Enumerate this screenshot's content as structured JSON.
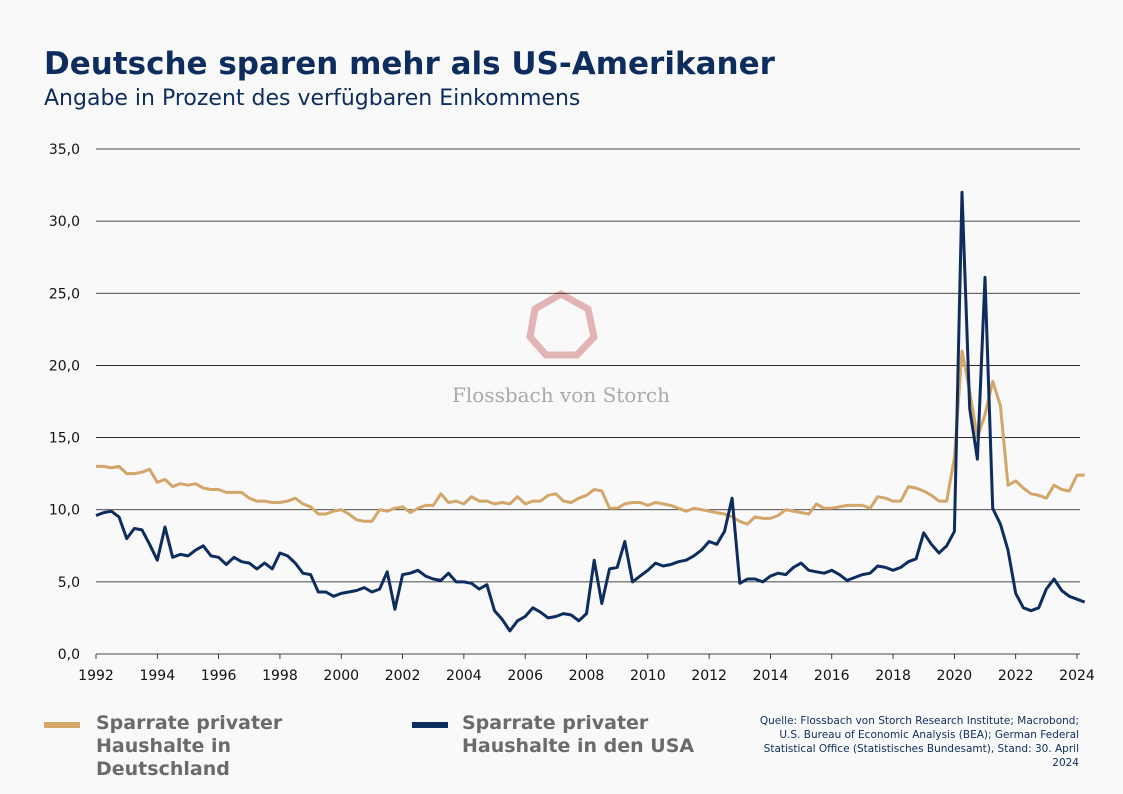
{
  "chart_data": {
    "type": "line",
    "title": "Deutsche sparen mehr als US-Amerikaner",
    "subtitle": "Angabe in Prozent des verfügbaren Einkommens",
    "watermark": "Flossbach von Storch",
    "source": "Quelle: Flossbach von Storch Research Institute; Macrobond; U.S. Bureau of Economic Analysis (BEA); German Federal Statistical Office (Statistisches Bundesamt), Stand: 30. April 2024",
    "x": [
      1992,
      1992.25,
      1992.5,
      1992.75,
      1993,
      1993.25,
      1993.5,
      1993.75,
      1994,
      1994.25,
      1994.5,
      1994.75,
      1995,
      1995.25,
      1995.5,
      1995.75,
      1996,
      1996.25,
      1996.5,
      1996.75,
      1997,
      1997.25,
      1997.5,
      1997.75,
      1998,
      1998.25,
      1998.5,
      1998.75,
      1999,
      1999.25,
      1999.5,
      1999.75,
      2000,
      2000.25,
      2000.5,
      2000.75,
      2001,
      2001.25,
      2001.5,
      2001.75,
      2002,
      2002.25,
      2002.5,
      2002.75,
      2003,
      2003.25,
      2003.5,
      2003.75,
      2004,
      2004.25,
      2004.5,
      2004.75,
      2005,
      2005.25,
      2005.5,
      2005.75,
      2006,
      2006.25,
      2006.5,
      2006.75,
      2007,
      2007.25,
      2007.5,
      2007.75,
      2008,
      2008.25,
      2008.5,
      2008.75,
      2009,
      2009.25,
      2009.5,
      2009.75,
      2010,
      2010.25,
      2010.5,
      2010.75,
      2011,
      2011.25,
      2011.5,
      2011.75,
      2012,
      2012.25,
      2012.5,
      2012.75,
      2013,
      2013.25,
      2013.5,
      2013.75,
      2014,
      2014.25,
      2014.5,
      2014.75,
      2015,
      2015.25,
      2015.5,
      2015.75,
      2016,
      2016.25,
      2016.5,
      2016.75,
      2017,
      2017.25,
      2017.5,
      2017.75,
      2018,
      2018.25,
      2018.5,
      2018.75,
      2019,
      2019.25,
      2019.5,
      2019.75,
      2020,
      2020.25,
      2020.5,
      2020.75,
      2021,
      2021.25,
      2021.5,
      2021.75,
      2022,
      2022.25,
      2022.5,
      2022.75,
      2023,
      2023.25,
      2023.5,
      2023.75,
      2024,
      2024.25
    ],
    "series": [
      {
        "name": "Sparrate privater Haushalte in Deutschland",
        "color": "#d3a66a",
        "values": [
          13.0,
          13.0,
          12.9,
          13.0,
          12.5,
          12.5,
          12.6,
          12.8,
          11.9,
          12.1,
          11.6,
          11.8,
          11.7,
          11.8,
          11.5,
          11.4,
          11.4,
          11.2,
          11.2,
          11.2,
          10.8,
          10.6,
          10.6,
          10.5,
          10.5,
          10.6,
          10.8,
          10.4,
          10.2,
          9.7,
          9.7,
          9.9,
          10.0,
          9.7,
          9.3,
          9.2,
          9.2,
          10.0,
          9.9,
          10.1,
          10.2,
          9.8,
          10.1,
          10.3,
          10.3,
          11.1,
          10.5,
          10.6,
          10.4,
          10.9,
          10.6,
          10.6,
          10.4,
          10.5,
          10.4,
          10.9,
          10.4,
          10.6,
          10.6,
          11.0,
          11.1,
          10.6,
          10.5,
          10.8,
          11.0,
          11.4,
          11.3,
          10.1,
          10.1,
          10.4,
          10.5,
          10.5,
          10.3,
          10.5,
          10.4,
          10.3,
          10.1,
          9.9,
          10.1,
          10.0,
          9.9,
          9.8,
          9.7,
          9.5,
          9.2,
          9.0,
          9.5,
          9.4,
          9.4,
          9.6,
          10.0,
          9.9,
          9.8,
          9.7,
          10.4,
          10.1,
          10.1,
          10.2,
          10.3,
          10.3,
          10.3,
          10.1,
          10.9,
          10.8,
          10.6,
          10.6,
          11.6,
          11.5,
          11.3,
          11.0,
          10.6,
          10.6,
          13.6,
          21.0,
          18.2,
          15.0,
          16.6,
          18.9,
          17.2,
          11.7,
          12.0,
          11.5,
          11.1,
          11.0,
          10.8,
          11.7,
          11.4,
          11.3,
          12.4,
          12.4
        ]
      },
      {
        "name": "Sparrate privater Haushalte in den USA",
        "color": "#0d2d5e",
        "values": [
          9.6,
          9.8,
          9.9,
          9.5,
          8.0,
          8.7,
          8.6,
          7.6,
          6.5,
          8.8,
          6.7,
          6.9,
          6.8,
          7.2,
          7.5,
          6.8,
          6.7,
          6.2,
          6.7,
          6.4,
          6.3,
          5.9,
          6.3,
          5.9,
          7.0,
          6.8,
          6.3,
          5.6,
          5.5,
          4.3,
          4.3,
          4.0,
          4.2,
          4.3,
          4.4,
          4.6,
          4.3,
          4.5,
          5.7,
          3.1,
          5.5,
          5.6,
          5.8,
          5.4,
          5.2,
          5.1,
          5.6,
          5.0,
          5.0,
          4.9,
          4.5,
          4.8,
          3.0,
          2.4,
          1.6,
          2.3,
          2.6,
          3.2,
          2.9,
          2.5,
          2.6,
          2.8,
          2.7,
          2.3,
          2.8,
          6.5,
          3.5,
          5.9,
          6.0,
          7.8,
          5.0,
          5.4,
          5.8,
          6.3,
          6.1,
          6.2,
          6.4,
          6.5,
          6.8,
          7.2,
          7.8,
          7.6,
          8.5,
          10.8,
          4.9,
          5.2,
          5.2,
          5.0,
          5.4,
          5.6,
          5.5,
          6.0,
          6.3,
          5.8,
          5.7,
          5.6,
          5.8,
          5.5,
          5.1,
          5.3,
          5.5,
          5.6,
          6.1,
          6.0,
          5.8,
          6.0,
          6.4,
          6.6,
          8.4,
          7.6,
          7.0,
          7.5,
          8.5,
          32.0,
          17.0,
          13.5,
          26.1,
          10.1,
          9.0,
          7.2,
          4.2,
          3.2,
          3.0,
          3.2,
          4.5,
          5.2,
          4.4,
          4.0,
          3.8,
          3.6
        ]
      }
    ],
    "xlim": [
      1992,
      2024.4
    ],
    "xticks": [
      1992,
      1994,
      1996,
      1998,
      2000,
      2002,
      2004,
      2006,
      2008,
      2010,
      2012,
      2014,
      2016,
      2018,
      2020,
      2022,
      2024
    ],
    "ylim": [
      0,
      35
    ],
    "yticks": [
      {
        "value": 0,
        "label": "0,0"
      },
      {
        "value": 5,
        "label": "5,0"
      },
      {
        "value": 10,
        "label": "10,0"
      },
      {
        "value": 15,
        "label": "15,0"
      },
      {
        "value": 20,
        "label": "20,0"
      },
      {
        "value": 25,
        "label": "25,0"
      },
      {
        "value": 30,
        "label": "30,0"
      },
      {
        "value": 35,
        "label": "35,0"
      }
    ],
    "grid": true
  }
}
